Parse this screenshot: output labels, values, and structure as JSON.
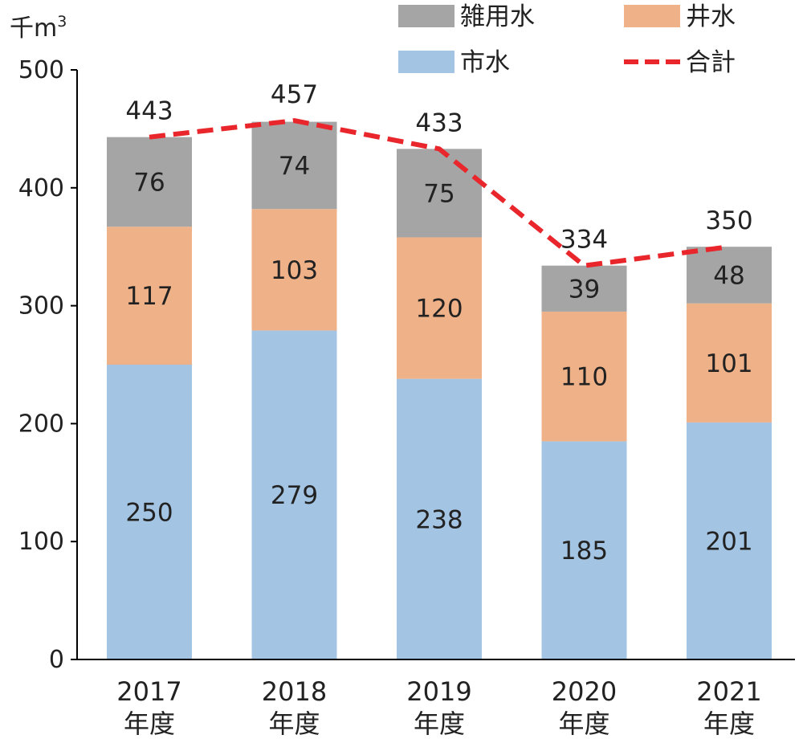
{
  "chart_data": {
    "type": "bar",
    "stacked": true,
    "unit_label": "千m",
    "unit_superscript": "3",
    "categories": [
      {
        "year": "2017",
        "suffix": "年度"
      },
      {
        "year": "2018",
        "suffix": "年度"
      },
      {
        "year": "2019",
        "suffix": "年度"
      },
      {
        "year": "2020",
        "suffix": "年度"
      },
      {
        "year": "2021",
        "suffix": "年度"
      }
    ],
    "series": [
      {
        "name": "市水",
        "color": "#a3c4e2",
        "values": [
          250,
          279,
          238,
          185,
          201
        ]
      },
      {
        "name": "井水",
        "color": "#efb188",
        "values": [
          117,
          103,
          120,
          110,
          101
        ]
      },
      {
        "name": "雑用水",
        "color": "#a5a5a5",
        "values": [
          76,
          74,
          75,
          39,
          48
        ]
      }
    ],
    "total_line": {
      "name": "合計",
      "color": "#e8262b",
      "style": "dashed",
      "values": [
        443,
        457,
        433,
        334,
        350
      ]
    },
    "ylim": [
      0,
      500
    ],
    "yticks": [
      0,
      100,
      200,
      300,
      400,
      500
    ],
    "grid": false,
    "legend_position": "top-right",
    "legend_order": [
      "雑用水",
      "井水",
      "市水",
      "合計"
    ]
  }
}
